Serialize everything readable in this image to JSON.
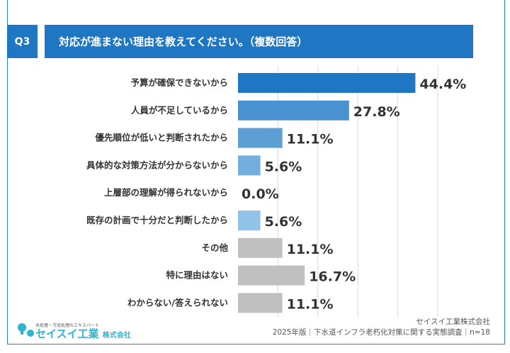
{
  "header": {
    "q_label": "Q3",
    "title": "対応が進まない理由を教えてください。（複数回答）"
  },
  "chart_data": {
    "type": "bar",
    "orientation": "horizontal",
    "categories": [
      "予算が確保できないから",
      "人員が不足しているから",
      "優先順位が低いと判断されたから",
      "具体的な対策方法が分からないから",
      "上層部の理解が得られないから",
      "既存の計画で十分だと判断したから",
      "その他",
      "特に理由はない",
      "わからない/答えられない"
    ],
    "values": [
      44.4,
      27.8,
      11.1,
      5.6,
      0.0,
      5.6,
      11.1,
      16.7,
      11.1
    ],
    "value_labels": [
      "44.4%",
      "27.8%",
      "11.1%",
      "5.6%",
      "0.0%",
      "5.6%",
      "11.1%",
      "16.7%",
      "11.1%"
    ],
    "unit": "%",
    "xlim": [
      0,
      50
    ],
    "grid": true,
    "colors": [
      "#1f77c4",
      "#4a92cf",
      "#5b9fd5",
      "#74aede",
      "#87b9e3",
      "#93c2e8",
      "#c0c0c0",
      "#c0c0c0",
      "#c0c0c0"
    ]
  },
  "footer": {
    "logo_tagline": "水処理・汚泥処理のエキスパート",
    "logo_name": "セイスイ工業",
    "logo_suffix": "株式会社",
    "company": "セイスイ工業株式会社",
    "source": "2025年版｜下水道インフラ老朽化対策に関する実態調査｜n=18"
  }
}
